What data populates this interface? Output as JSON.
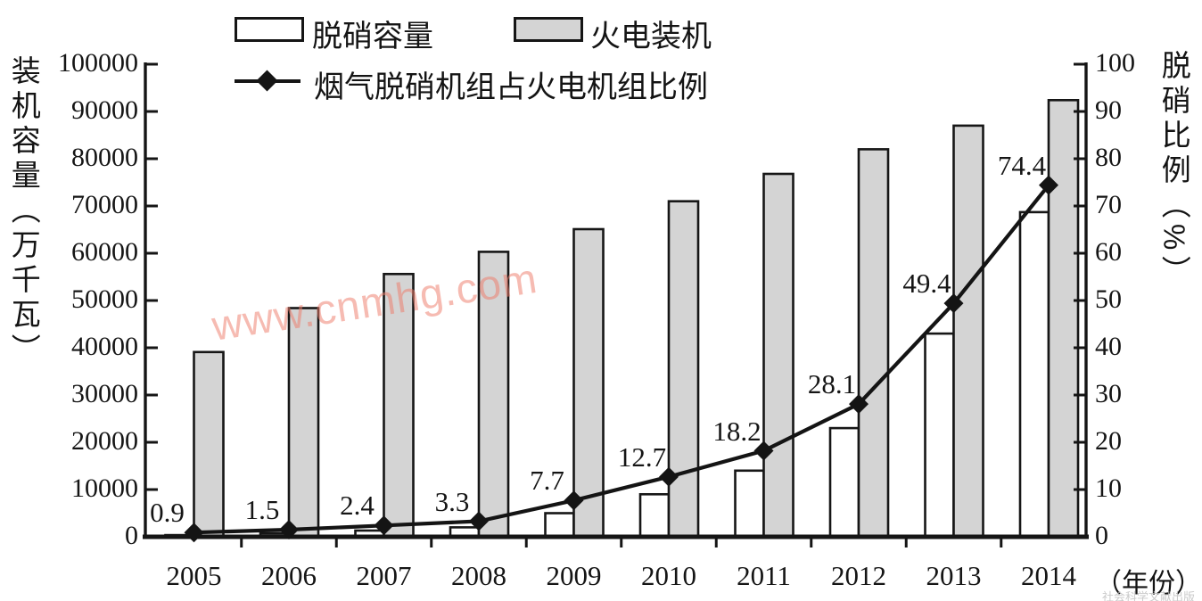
{
  "legend": {
    "bar_white": "脱硝容量",
    "bar_gray": "火电装机",
    "line": "烟气脱硝机组占火电机组比例"
  },
  "axes": {
    "left_title": "装机容量（万千瓦）",
    "right_title": "脱硝比例（%）",
    "x_suffix": "（年份）",
    "left_ticks": [
      "100000",
      "90000",
      "80000",
      "70000",
      "60000",
      "50000",
      "40000",
      "30000",
      "20000",
      "10000",
      "0"
    ],
    "right_ticks": [
      "100",
      "90",
      "80",
      "70",
      "60",
      "50",
      "40",
      "30",
      "20",
      "10",
      "0"
    ]
  },
  "watermarks": {
    "center": "www.cnmhg.com",
    "corner": "社会科学文献出版社"
  },
  "chart_data": {
    "type": "combo",
    "categories": [
      "2005",
      "2006",
      "2007",
      "2008",
      "2009",
      "2010",
      "2011",
      "2012",
      "2013",
      "2014"
    ],
    "series": [
      {
        "name": "脱硝容量",
        "type": "bar",
        "axis": "left",
        "color": "#ffffff",
        "values": [
          350,
          730,
          1330,
          2000,
          5000,
          9000,
          14000,
          23000,
          43000,
          68700
        ]
      },
      {
        "name": "火电装机",
        "type": "bar",
        "axis": "left",
        "color": "#d4d4d4",
        "values": [
          39100,
          48400,
          55600,
          60300,
          65100,
          71000,
          76800,
          82000,
          87000,
          92400
        ]
      },
      {
        "name": "烟气脱硝机组占火电机组比例",
        "type": "line",
        "axis": "right",
        "color": "#141414",
        "values": [
          0.9,
          1.5,
          2.4,
          3.3,
          7.7,
          12.7,
          18.2,
          28.1,
          49.4,
          74.4
        ],
        "labels": [
          "0.9",
          "1.5",
          "2.4",
          "3.3",
          "7.7",
          "12.7",
          "18.2",
          "28.1",
          "49.4",
          "74.4"
        ]
      }
    ],
    "title": "",
    "xlabel": "（年份）",
    "ylabel_left": "装机容量（万千瓦）",
    "ylabel_right": "脱硝比例（%）",
    "ylim_left": [
      0,
      100000
    ],
    "ylim_right": [
      0,
      100
    ],
    "grid": false,
    "legend_position": "top"
  }
}
